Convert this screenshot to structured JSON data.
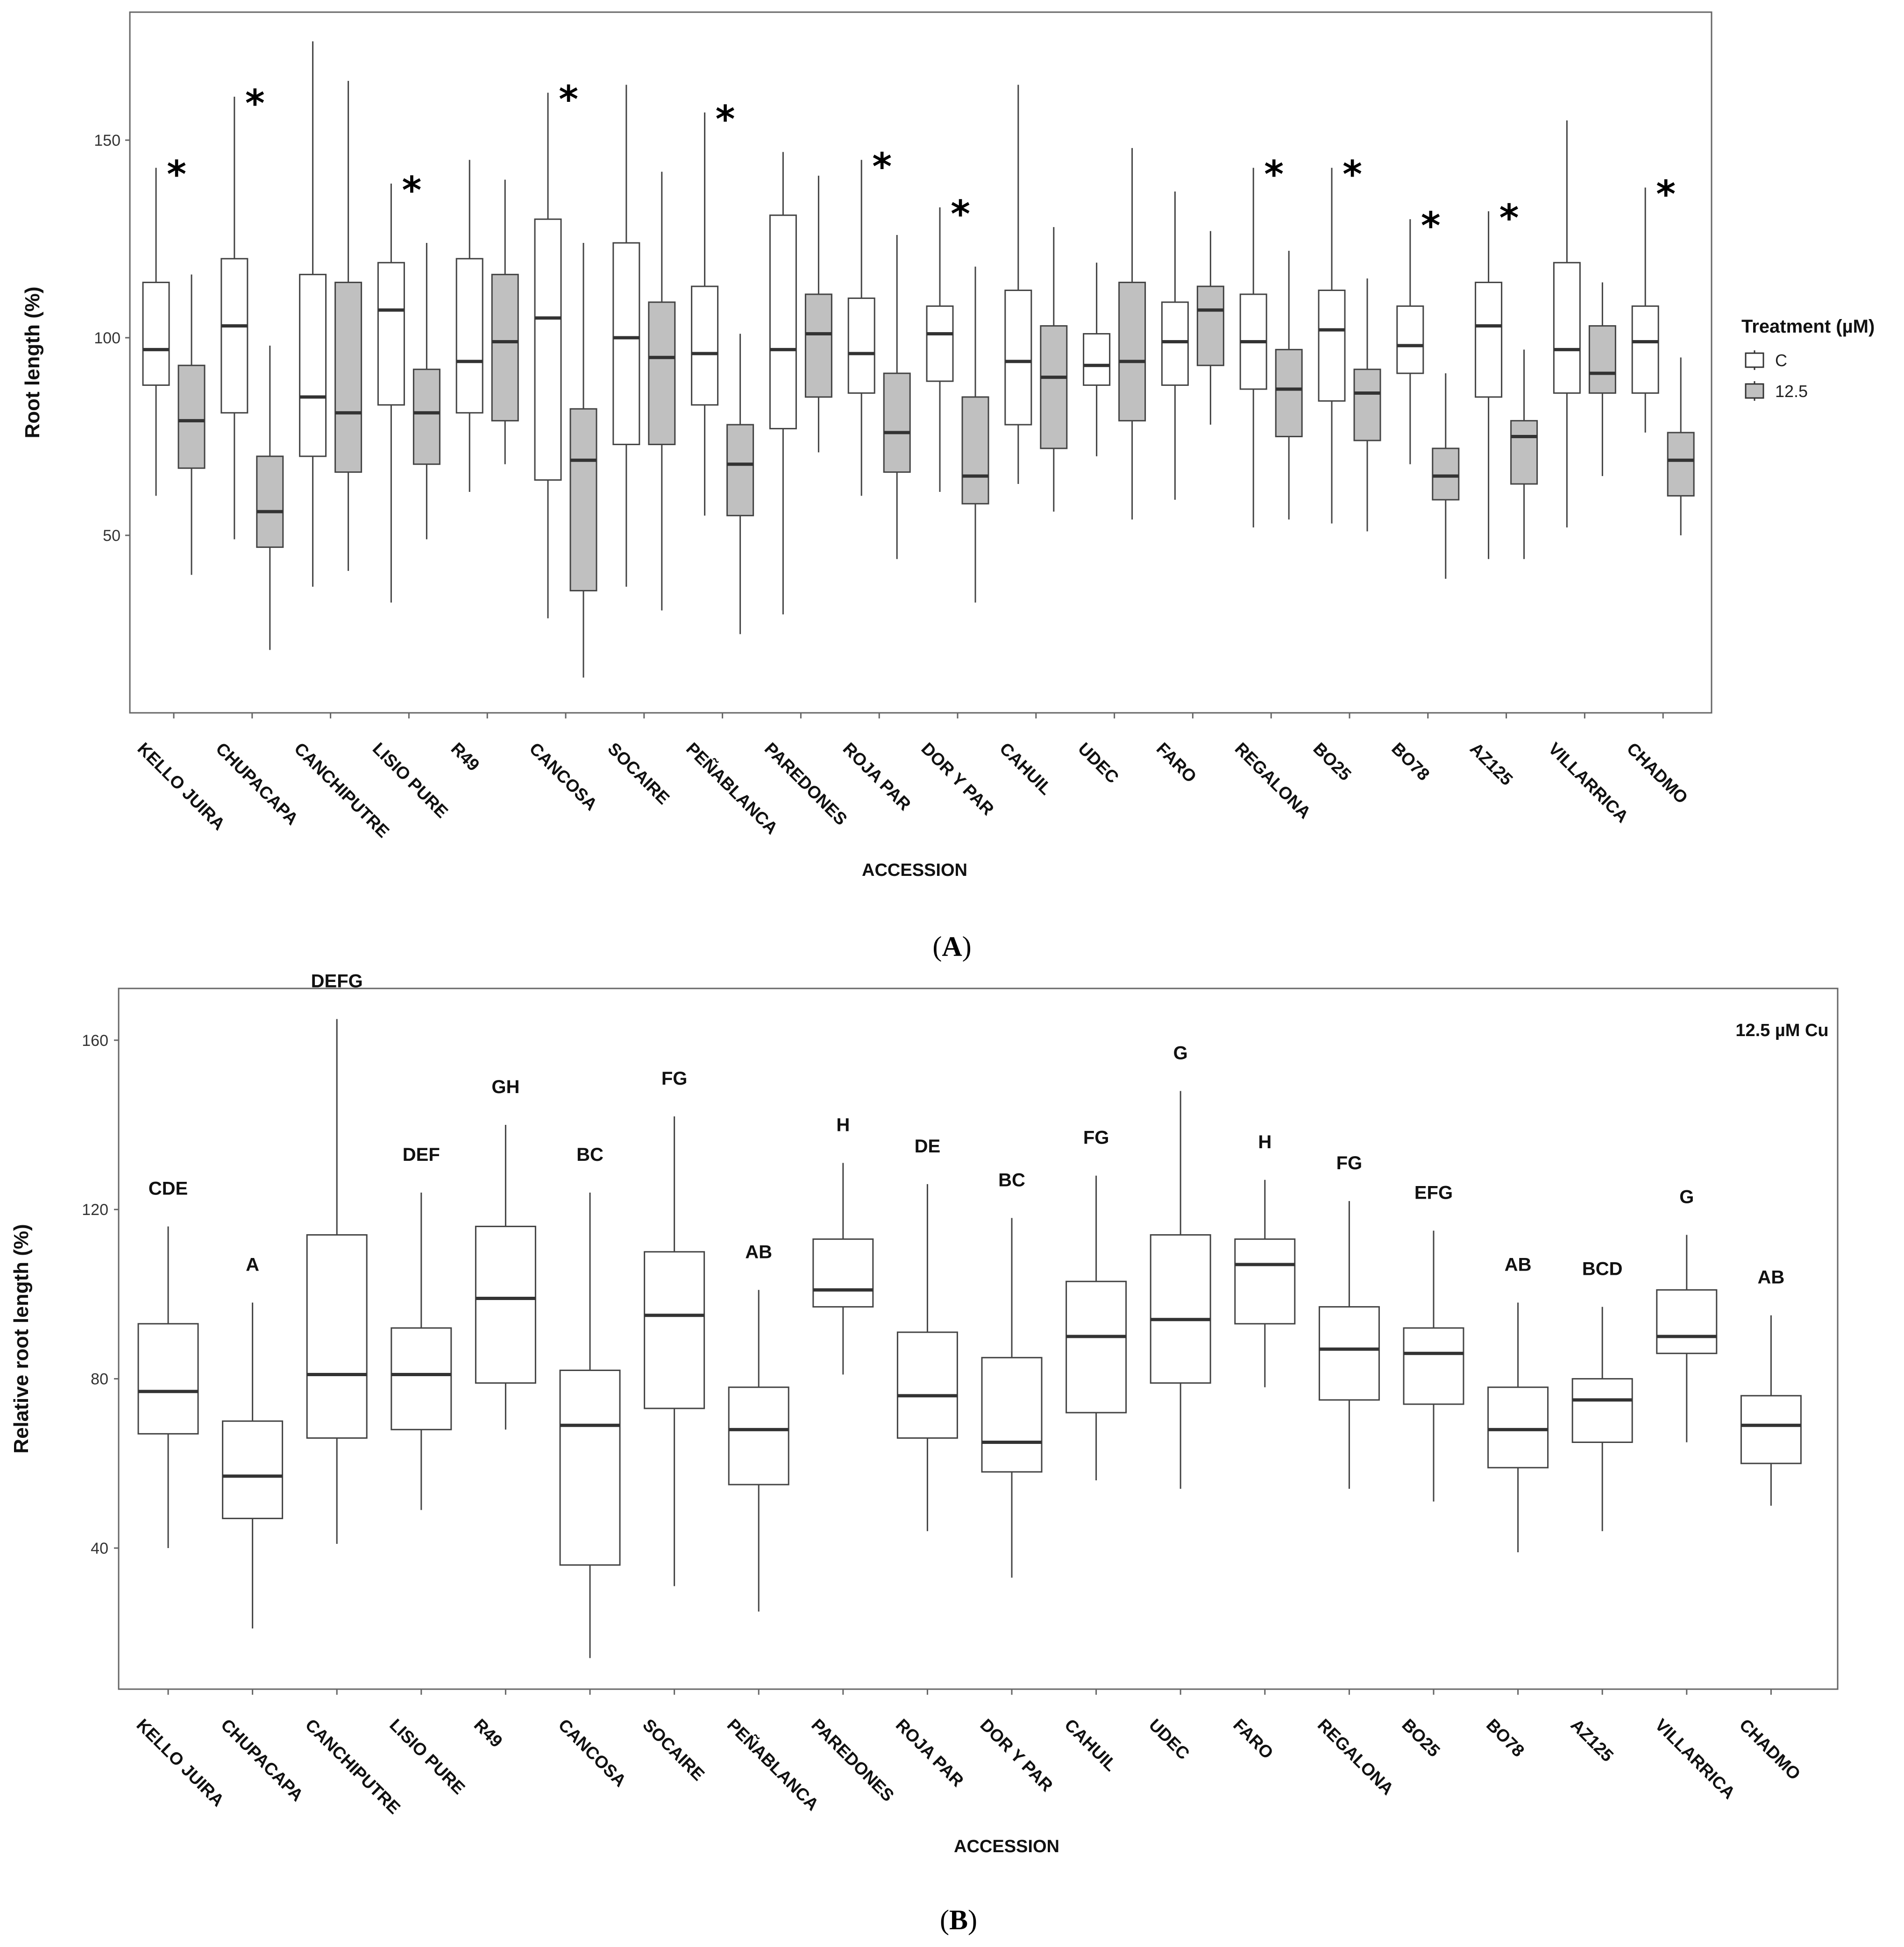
{
  "chart_data": [
    {
      "type": "boxplot",
      "panel_label": "A",
      "ylabel": "Root length (%)",
      "xlabel": "ACCESSION",
      "ylim": [
        0,
        177
      ],
      "yticks": [
        50,
        100,
        150
      ],
      "legend": {
        "title": "Treatment (µM)",
        "placement": "right",
        "entries": [
          {
            "name": "C",
            "fill": "#ffffff"
          },
          {
            "name": "12.5",
            "fill": "#c0c0c0"
          }
        ]
      },
      "significance_symbol": "*",
      "categories": [
        "KELLO JUIRA",
        "CHUPACAPA",
        "CANCHIPUTRE",
        "LISIO PURE",
        "R49",
        "CANCOSA",
        "SOCAIRE",
        "PEÑABLANCA",
        "PAREDONES",
        "ROJA PAR",
        "DOR Y PAR",
        "CAHUIL",
        "UDEC",
        "FARO",
        "REGALONA",
        "BO25",
        "BO78",
        "AZ125",
        "VILLARRICA",
        "CHADMO"
      ],
      "significant": [
        true,
        true,
        false,
        true,
        false,
        true,
        false,
        true,
        false,
        true,
        true,
        false,
        false,
        false,
        true,
        true,
        true,
        true,
        false,
        true
      ],
      "series": [
        {
          "name": "C",
          "fill": "#ffffff",
          "boxes": [
            {
              "min": 60,
              "q1": 88,
              "median": 97,
              "q3": 114,
              "max": 143
            },
            {
              "min": 49,
              "q1": 81,
              "median": 103,
              "q3": 120,
              "max": 161
            },
            {
              "min": 37,
              "q1": 70,
              "median": 85,
              "q3": 116,
              "max": 175
            },
            {
              "min": 33,
              "q1": 83,
              "median": 107,
              "q3": 119,
              "max": 139
            },
            {
              "min": 61,
              "q1": 81,
              "median": 94,
              "q3": 120,
              "max": 145
            },
            {
              "min": 29,
              "q1": 64,
              "median": 105,
              "q3": 130,
              "max": 162
            },
            {
              "min": 37,
              "q1": 73,
              "median": 100,
              "q3": 124,
              "max": 164
            },
            {
              "min": 55,
              "q1": 83,
              "median": 96,
              "q3": 113,
              "max": 157
            },
            {
              "min": 30,
              "q1": 77,
              "median": 97,
              "q3": 131,
              "max": 147
            },
            {
              "min": 60,
              "q1": 86,
              "median": 96,
              "q3": 110,
              "max": 145
            },
            {
              "min": 61,
              "q1": 89,
              "median": 101,
              "q3": 108,
              "max": 133
            },
            {
              "min": 63,
              "q1": 78,
              "median": 94,
              "q3": 112,
              "max": 164
            },
            {
              "min": 70,
              "q1": 88,
              "median": 93,
              "q3": 101,
              "max": 119
            },
            {
              "min": 59,
              "q1": 88,
              "median": 99,
              "q3": 109,
              "max": 137
            },
            {
              "min": 52,
              "q1": 87,
              "median": 99,
              "q3": 111,
              "max": 143
            },
            {
              "min": 53,
              "q1": 84,
              "median": 102,
              "q3": 112,
              "max": 143
            },
            {
              "min": 68,
              "q1": 91,
              "median": 98,
              "q3": 108,
              "max": 130
            },
            {
              "min": 44,
              "q1": 85,
              "median": 103,
              "q3": 114,
              "max": 132
            },
            {
              "min": 52,
              "q1": 86,
              "median": 97,
              "q3": 119,
              "max": 155
            },
            {
              "min": 76,
              "q1": 86,
              "median": 99,
              "q3": 108,
              "max": 138
            }
          ]
        },
        {
          "name": "12.5",
          "fill": "#c0c0c0",
          "boxes": [
            {
              "min": 40,
              "q1": 67,
              "median": 79,
              "q3": 93,
              "max": 116
            },
            {
              "min": 21,
              "q1": 47,
              "median": 56,
              "q3": 70,
              "max": 98
            },
            {
              "min": 41,
              "q1": 66,
              "median": 81,
              "q3": 114,
              "max": 165
            },
            {
              "min": 49,
              "q1": 68,
              "median": 81,
              "q3": 92,
              "max": 124
            },
            {
              "min": 68,
              "q1": 79,
              "median": 99,
              "q3": 116,
              "max": 140
            },
            {
              "min": 14,
              "q1": 36,
              "median": 69,
              "q3": 82,
              "max": 124
            },
            {
              "min": 31,
              "q1": 73,
              "median": 95,
              "q3": 109,
              "max": 142
            },
            {
              "min": 25,
              "q1": 55,
              "median": 68,
              "q3": 78,
              "max": 101
            },
            {
              "min": 71,
              "q1": 85,
              "median": 101,
              "q3": 111,
              "max": 141
            },
            {
              "min": 44,
              "q1": 66,
              "median": 76,
              "q3": 91,
              "max": 126
            },
            {
              "min": 33,
              "q1": 58,
              "median": 65,
              "q3": 85,
              "max": 118
            },
            {
              "min": 56,
              "q1": 72,
              "median": 90,
              "q3": 103,
              "max": 128
            },
            {
              "min": 54,
              "q1": 79,
              "median": 94,
              "q3": 114,
              "max": 148
            },
            {
              "min": 78,
              "q1": 93,
              "median": 107,
              "q3": 113,
              "max": 127
            },
            {
              "min": 54,
              "q1": 75,
              "median": 87,
              "q3": 97,
              "max": 122
            },
            {
              "min": 51,
              "q1": 74,
              "median": 86,
              "q3": 92,
              "max": 115
            },
            {
              "min": 39,
              "q1": 59,
              "median": 65,
              "q3": 72,
              "max": 91
            },
            {
              "min": 44,
              "q1": 63,
              "median": 75,
              "q3": 79,
              "max": 97
            },
            {
              "min": 65,
              "q1": 86,
              "median": 91,
              "q3": 103,
              "max": 114
            },
            {
              "min": 50,
              "q1": 60,
              "median": 69,
              "q3": 76,
              "max": 95
            }
          ]
        }
      ]
    },
    {
      "type": "boxplot",
      "panel_label": "B",
      "ylabel": "Relative root length (%)",
      "xlabel": "ACCESSION",
      "ylim": [
        5,
        170
      ],
      "yticks": [
        40,
        80,
        120,
        160
      ],
      "annotation": "12.5 µM Cu",
      "categories": [
        "KELLO JUIRA",
        "CHUPACAPA",
        "CANCHIPUTRE",
        "LISIO PURE",
        "R49",
        "CANCOSA",
        "SOCAIRE",
        "PEÑABLANCA",
        "PAREDONES",
        "ROJA PAR",
        "DOR Y PAR",
        "CAHUIL",
        "UDEC",
        "FARO",
        "REGALONA",
        "BO25",
        "BO78",
        "AZ125",
        "VILLARRICA",
        "CHADMO"
      ],
      "group_letters": [
        "CDE",
        "A",
        "DEFG",
        "DEF",
        "GH",
        "BC",
        "FG",
        "AB",
        "H",
        "DE",
        "BC",
        "FG",
        "G",
        "H",
        "FG",
        "EFG",
        "AB",
        "BCD",
        "G",
        "AB"
      ],
      "boxes": [
        {
          "min": 40,
          "q1": 67,
          "median": 77,
          "q3": 93,
          "max": 116
        },
        {
          "min": 21,
          "q1": 47,
          "median": 57,
          "q3": 70,
          "max": 98
        },
        {
          "min": 41,
          "q1": 66,
          "median": 81,
          "q3": 114,
          "max": 165
        },
        {
          "min": 49,
          "q1": 68,
          "median": 81,
          "q3": 92,
          "max": 124
        },
        {
          "min": 68,
          "q1": 79,
          "median": 99,
          "q3": 116,
          "max": 140
        },
        {
          "min": 14,
          "q1": 36,
          "median": 69,
          "q3": 82,
          "max": 124
        },
        {
          "min": 31,
          "q1": 73,
          "median": 95,
          "q3": 110,
          "max": 142
        },
        {
          "min": 25,
          "q1": 55,
          "median": 68,
          "q3": 78,
          "max": 101
        },
        {
          "min": 81,
          "q1": 97,
          "median": 101,
          "q3": 113,
          "max": 131
        },
        {
          "min": 44,
          "q1": 66,
          "median": 76,
          "q3": 91,
          "max": 126
        },
        {
          "min": 33,
          "q1": 58,
          "median": 65,
          "q3": 85,
          "max": 118
        },
        {
          "min": 56,
          "q1": 72,
          "median": 90,
          "q3": 103,
          "max": 128
        },
        {
          "min": 54,
          "q1": 79,
          "median": 94,
          "q3": 114,
          "max": 148
        },
        {
          "min": 78,
          "q1": 93,
          "median": 107,
          "q3": 113,
          "max": 127
        },
        {
          "min": 54,
          "q1": 75,
          "median": 87,
          "q3": 97,
          "max": 122
        },
        {
          "min": 51,
          "q1": 74,
          "median": 86,
          "q3": 92,
          "max": 115
        },
        {
          "min": 39,
          "q1": 59,
          "median": 68,
          "q3": 78,
          "max": 98
        },
        {
          "min": 44,
          "q1": 65,
          "median": 75,
          "q3": 80,
          "max": 97
        },
        {
          "min": 65,
          "q1": 86,
          "median": 90,
          "q3": 101,
          "max": 114
        },
        {
          "min": 50,
          "q1": 60,
          "median": 69,
          "q3": 76,
          "max": 95
        }
      ]
    }
  ]
}
